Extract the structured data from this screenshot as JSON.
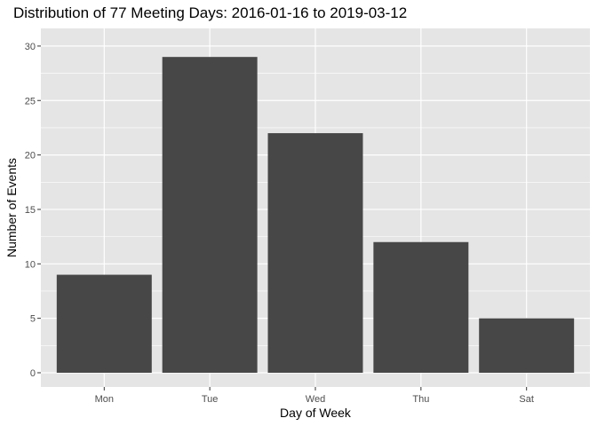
{
  "chart_data": {
    "type": "bar",
    "title": "Distribution of 77 Meeting Days: 2016-01-16 to 2019-03-12",
    "xlabel": "Day of Week",
    "ylabel": "Number of Events",
    "categories": [
      "Mon",
      "Tue",
      "Wed",
      "Thu",
      "Sat"
    ],
    "values": [
      9,
      29,
      22,
      12,
      5
    ],
    "ylim": [
      0,
      31
    ],
    "y_ticks": [
      "0",
      "5",
      "10",
      "15",
      "20",
      "25",
      "30"
    ],
    "grid": true,
    "bar_color": "#474747",
    "panel_background": "#e5e5e5",
    "grid_color": "#ffffff"
  }
}
